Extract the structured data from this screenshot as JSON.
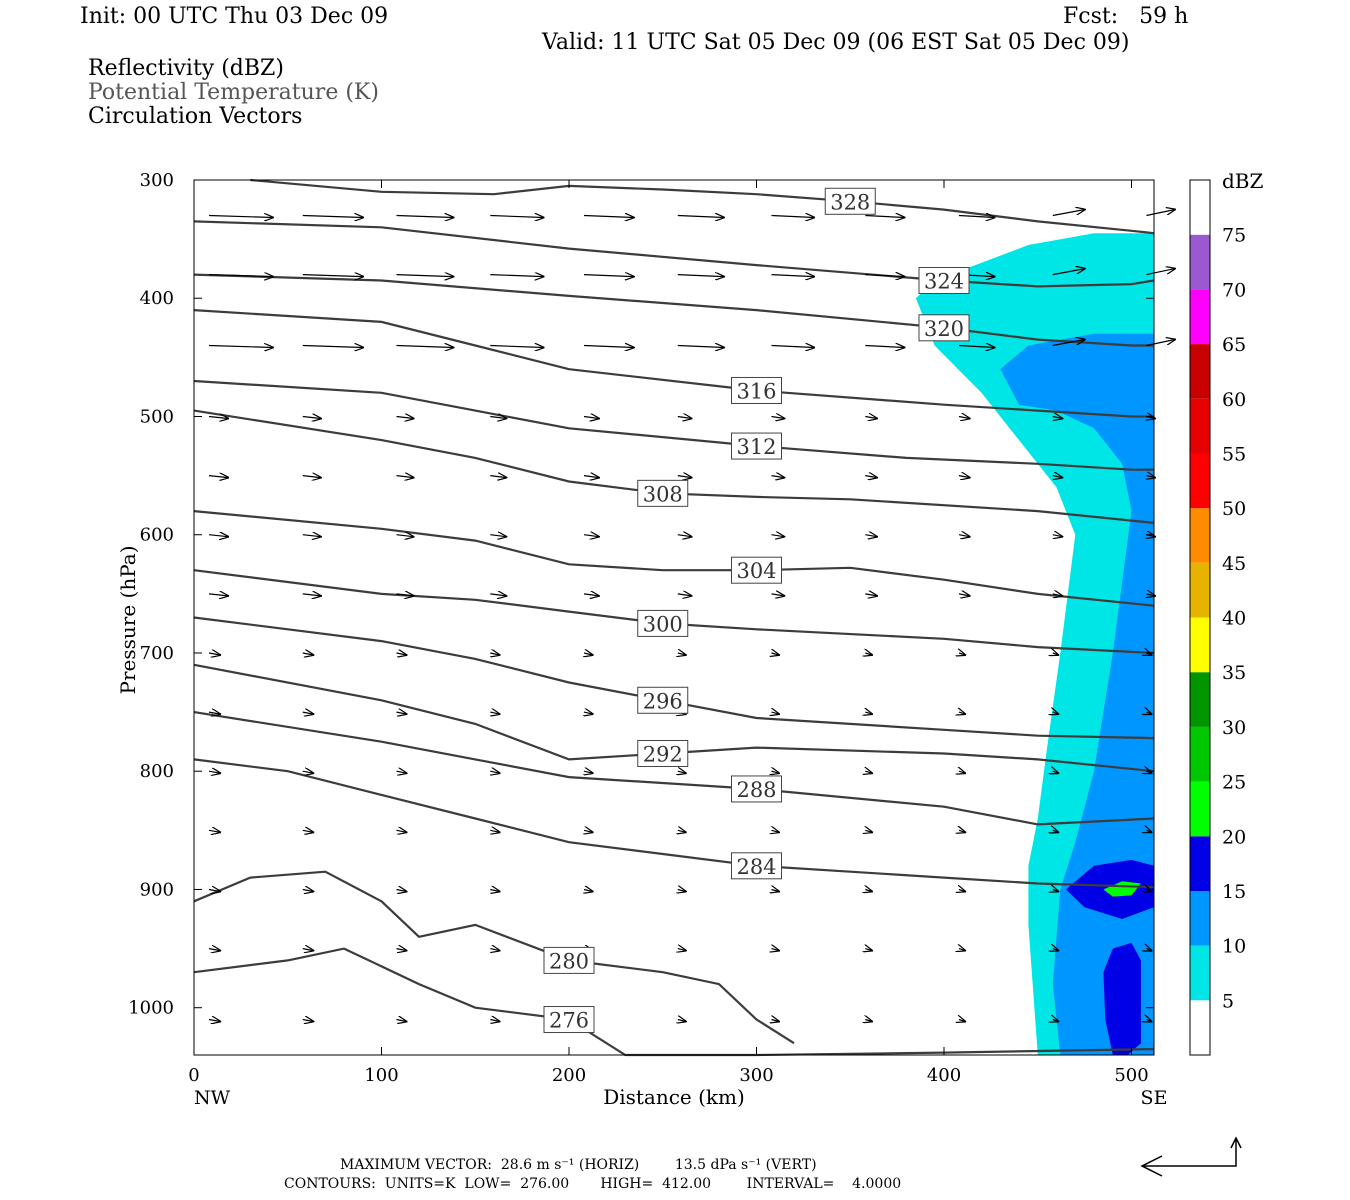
{
  "header": {
    "init": "Init: 00 UTC Thu 03 Dec 09",
    "fcst": "Fcst:   59 h",
    "valid": "Valid: 11 UTC Sat 05 Dec 09 (06 EST Sat 05 Dec 09)"
  },
  "fields": [
    "Reflectivity (dBZ)",
    "Potential Temperature (K)",
    "Circulation Vectors"
  ],
  "footer": {
    "max_vector": "MAXIMUM VECTOR:  28.6 m s⁻¹ (HORIZ)        13.5 dPa s⁻¹ (VERT)",
    "contours": "CONTOURS:  UNITS=K  LOW=  276.00       HIGH=  412.00        INTERVAL=    4.0000"
  },
  "colors": {
    "contour": "#3c3c3c",
    "c5": "#00e6e6",
    "c10": "#0096ff",
    "c15": "#0000e6",
    "c20": "#00ff00"
  },
  "chart_data": {
    "type": "cross-section",
    "xlabel": "Distance (km)",
    "ylabel": "Pressure (hPa)",
    "x_ticks": [
      0,
      100,
      200,
      300,
      400,
      500
    ],
    "y_ticks": [
      300,
      400,
      500,
      600,
      700,
      800,
      900,
      1000
    ],
    "xlim": [
      0,
      512
    ],
    "ylim": [
      300,
      1040
    ],
    "left_end": "NW",
    "right_end": "SE",
    "colorbar": {
      "unit": "dBZ",
      "levels": [
        5,
        10,
        15,
        20,
        25,
        30,
        35,
        40,
        45,
        50,
        55,
        60,
        65,
        70,
        75
      ],
      "colors": [
        "#ffffff",
        "#00e6e6",
        "#0096ff",
        "#0000e6",
        "#00ff00",
        "#00c800",
        "#009600",
        "#ffff00",
        "#e6b400",
        "#ff8c00",
        "#ff0000",
        "#e60000",
        "#c80000",
        "#ff00ff",
        "#9b59d0",
        "#ffffff"
      ]
    },
    "theta_contours": [
      {
        "label": "328",
        "points": [
          [
            30,
            300
          ],
          [
            100,
            310
          ],
          [
            160,
            312
          ],
          [
            200,
            305
          ],
          [
            250,
            308
          ],
          [
            300,
            312
          ],
          [
            350,
            318
          ],
          [
            400,
            325
          ],
          [
            450,
            335
          ],
          [
            500,
            343
          ],
          [
            512,
            345
          ]
        ]
      },
      {
        "label": "324",
        "points": [
          [
            0,
            335
          ],
          [
            100,
            340
          ],
          [
            200,
            358
          ],
          [
            300,
            372
          ],
          [
            400,
            385
          ],
          [
            450,
            390
          ],
          [
            500,
            388
          ],
          [
            512,
            385
          ]
        ]
      },
      {
        "label": "320",
        "points": [
          [
            0,
            380
          ],
          [
            100,
            385
          ],
          [
            200,
            398
          ],
          [
            300,
            410
          ],
          [
            400,
            425
          ],
          [
            450,
            435
          ],
          [
            500,
            440
          ],
          [
            512,
            440
          ]
        ]
      },
      {
        "label": "316",
        "points": [
          [
            0,
            410
          ],
          [
            100,
            420
          ],
          [
            150,
            440
          ],
          [
            200,
            460
          ],
          [
            300,
            478
          ],
          [
            400,
            490
          ],
          [
            450,
            495
          ],
          [
            500,
            500
          ],
          [
            512,
            500
          ]
        ]
      },
      {
        "label": "312",
        "points": [
          [
            0,
            470
          ],
          [
            100,
            480
          ],
          [
            150,
            495
          ],
          [
            200,
            510
          ],
          [
            300,
            525
          ],
          [
            380,
            535
          ],
          [
            450,
            540
          ],
          [
            500,
            545
          ],
          [
            512,
            545
          ]
        ]
      },
      {
        "label": "308",
        "points": [
          [
            0,
            495
          ],
          [
            100,
            520
          ],
          [
            150,
            535
          ],
          [
            200,
            555
          ],
          [
            250,
            565
          ],
          [
            300,
            568
          ],
          [
            350,
            570
          ],
          [
            450,
            580
          ],
          [
            512,
            590
          ]
        ]
      },
      {
        "label": "304",
        "points": [
          [
            0,
            580
          ],
          [
            100,
            595
          ],
          [
            150,
            605
          ],
          [
            200,
            625
          ],
          [
            250,
            630
          ],
          [
            300,
            630
          ],
          [
            350,
            628
          ],
          [
            400,
            638
          ],
          [
            450,
            650
          ],
          [
            512,
            660
          ]
        ]
      },
      {
        "label": "300",
        "points": [
          [
            0,
            630
          ],
          [
            100,
            650
          ],
          [
            150,
            655
          ],
          [
            200,
            665
          ],
          [
            250,
            675
          ],
          [
            300,
            680
          ],
          [
            400,
            688
          ],
          [
            450,
            695
          ],
          [
            512,
            700
          ]
        ]
      },
      {
        "label": "296",
        "points": [
          [
            0,
            670
          ],
          [
            100,
            690
          ],
          [
            150,
            705
          ],
          [
            200,
            725
          ],
          [
            250,
            740
          ],
          [
            300,
            755
          ],
          [
            400,
            765
          ],
          [
            450,
            770
          ],
          [
            512,
            772
          ]
        ]
      },
      {
        "label": "292",
        "points": [
          [
            0,
            710
          ],
          [
            100,
            740
          ],
          [
            150,
            760
          ],
          [
            200,
            790
          ],
          [
            250,
            785
          ],
          [
            300,
            780
          ],
          [
            400,
            785
          ],
          [
            450,
            790
          ],
          [
            512,
            800
          ]
        ]
      },
      {
        "label": "288",
        "points": [
          [
            0,
            750
          ],
          [
            100,
            775
          ],
          [
            150,
            790
          ],
          [
            200,
            805
          ],
          [
            300,
            815
          ],
          [
            400,
            830
          ],
          [
            450,
            845
          ],
          [
            512,
            840
          ]
        ]
      },
      {
        "label": "284",
        "points": [
          [
            0,
            790
          ],
          [
            50,
            800
          ],
          [
            100,
            820
          ],
          [
            150,
            840
          ],
          [
            200,
            860
          ],
          [
            250,
            870
          ],
          [
            300,
            880
          ],
          [
            350,
            885
          ],
          [
            400,
            890
          ],
          [
            450,
            895
          ],
          [
            512,
            898
          ]
        ]
      },
      {
        "label": "280",
        "points": [
          [
            0,
            910
          ],
          [
            30,
            890
          ],
          [
            70,
            885
          ],
          [
            100,
            910
          ],
          [
            120,
            940
          ],
          [
            150,
            930
          ],
          [
            200,
            960
          ],
          [
            250,
            970
          ],
          [
            280,
            980
          ],
          [
            300,
            1010
          ],
          [
            320,
            1030
          ]
        ]
      },
      {
        "label": "276",
        "points": [
          [
            0,
            970
          ],
          [
            50,
            960
          ],
          [
            80,
            950
          ],
          [
            120,
            980
          ],
          [
            150,
            1000
          ],
          [
            200,
            1010
          ],
          [
            230,
            1040
          ],
          [
            300,
            1040
          ],
          [
            400,
            1038
          ],
          [
            512,
            1035
          ]
        ]
      }
    ]
  }
}
